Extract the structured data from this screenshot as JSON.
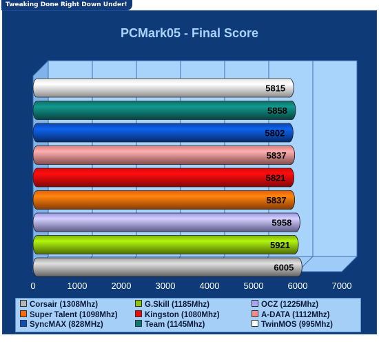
{
  "site_tab": "Tweaking Done Right Down Under!",
  "chart_data": {
    "type": "bar",
    "orientation": "horizontal",
    "title": "PCMark05 - Final Score",
    "xlabel": "",
    "ylabel": "",
    "xlim": [
      0,
      7000
    ],
    "xticks": [
      0,
      1000,
      2000,
      3000,
      4000,
      5000,
      6000,
      7000
    ],
    "grid": true,
    "legend_position": "bottom",
    "series": [
      {
        "name": "TwinMOS (995Mhz)",
        "value": 5815,
        "color": "#ffffff"
      },
      {
        "name": "Team (1145Mhz)",
        "value": 5858,
        "color": "#0e7a72"
      },
      {
        "name": "SyncMAX (828MHz)",
        "value": 5802,
        "color": "#0b4fbf"
      },
      {
        "name": "A-DATA (1112Mhz)",
        "value": 5837,
        "color": "#f08c8c"
      },
      {
        "name": "Kingston (1080Mhz)",
        "value": 5821,
        "color": "#f00a0a"
      },
      {
        "name": "Super Talent (1098Mhz)",
        "value": 5837,
        "color": "#fa6a0a"
      },
      {
        "name": "OCZ (1225Mhz)",
        "value": 5958,
        "color": "#aaa6f5"
      },
      {
        "name": "G.Skill (1185Mhz)",
        "value": 5921,
        "color": "#8ec40a"
      },
      {
        "name": "Corsair (1308Mhz)",
        "value": 6005,
        "color": "#b4b4b4"
      }
    ],
    "legend_order": [
      "Corsair (1308Mhz)",
      "G.Skill (1185Mhz)",
      "OCZ (1225Mhz)",
      "Super Talent (1098Mhz)",
      "Kingston (1080Mhz)",
      "A-DATA (1112Mhz)",
      "SyncMAX (828MHz)",
      "Team (1145Mhz)",
      "TwinMOS (995Mhz)"
    ]
  }
}
